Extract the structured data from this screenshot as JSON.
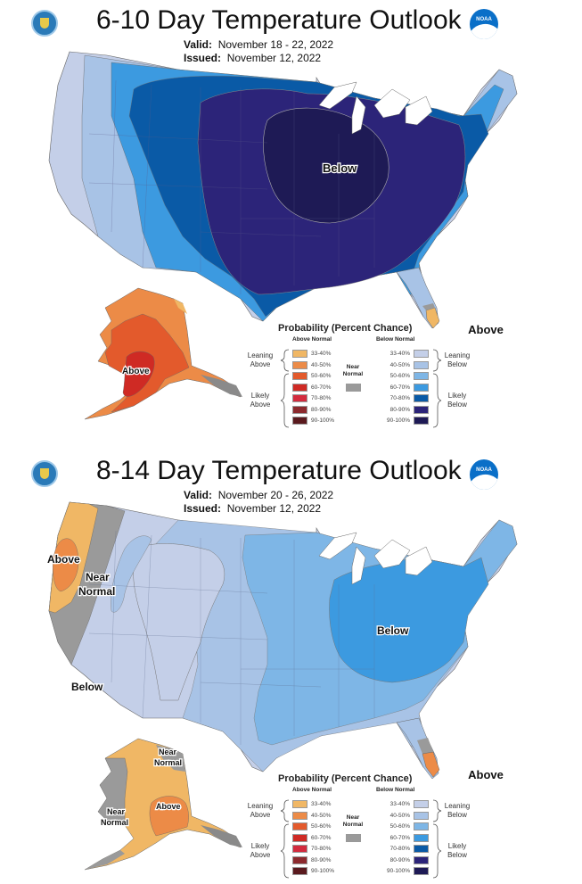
{
  "panels": [
    {
      "title": "6-10 Day Temperature Outlook",
      "valid_label": "Valid:",
      "valid_value": "November 18 - 22, 2022",
      "issued_label": "Issued:",
      "issued_value": "November 12, 2022",
      "map_labels": {
        "conus_main": "Below",
        "florida": "Above",
        "alaska": "Above"
      }
    },
    {
      "title": "8-14 Day Temperature Outlook",
      "valid_label": "Valid:",
      "valid_value": "November 20 - 26, 2022",
      "issued_label": "Issued:",
      "issued_value": "November 12, 2022",
      "map_labels": {
        "west_coast": "Above",
        "near_normal_west_1": "Near",
        "near_normal_west_2": "Normal",
        "southwest": "Below",
        "east": "Below",
        "florida": "Above",
        "alaska_ne_1": "Near",
        "alaska_ne_2": "Normal",
        "alaska_w_1": "Near",
        "alaska_w_2": "Normal",
        "alaska_south": "Above"
      }
    }
  ],
  "logos": {
    "left": "doc-seal-icon",
    "right": "noaa-logo-icon",
    "noaa_text": "NOAA"
  },
  "legend": {
    "title": "Probability (Percent Chance)",
    "above_header": "Above Normal",
    "below_header": "Below Normal",
    "near_label_1": "Near",
    "near_label_2": "Normal",
    "leaning_above_1": "Leaning",
    "leaning_above_2": "Above",
    "likely_above_1": "Likely",
    "likely_above_2": "Above",
    "leaning_below_1": "Leaning",
    "leaning_below_2": "Below",
    "likely_below_1": "Likely",
    "likely_below_2": "Below",
    "near_color": "#9a9a9a",
    "bins": [
      {
        "range": "33-40%",
        "above_color": "#f0b765",
        "below_color": "#c4cfe8"
      },
      {
        "range": "40-50%",
        "above_color": "#ec8b47",
        "below_color": "#a8c3e6"
      },
      {
        "range": "50-60%",
        "above_color": "#e35a2c",
        "below_color": "#7eb6e6"
      },
      {
        "range": "60-70%",
        "above_color": "#cf2a24",
        "below_color": "#3c9ae0"
      },
      {
        "range": "70-80%",
        "above_color": "#d32b3e",
        "below_color": "#0a5aa6"
      },
      {
        "range": "80-90%",
        "above_color": "#8c2a2e",
        "below_color": "#2c2479"
      },
      {
        "range": "90-100%",
        "above_color": "#5a1a1e",
        "below_color": "#1e1a55"
      }
    ]
  }
}
